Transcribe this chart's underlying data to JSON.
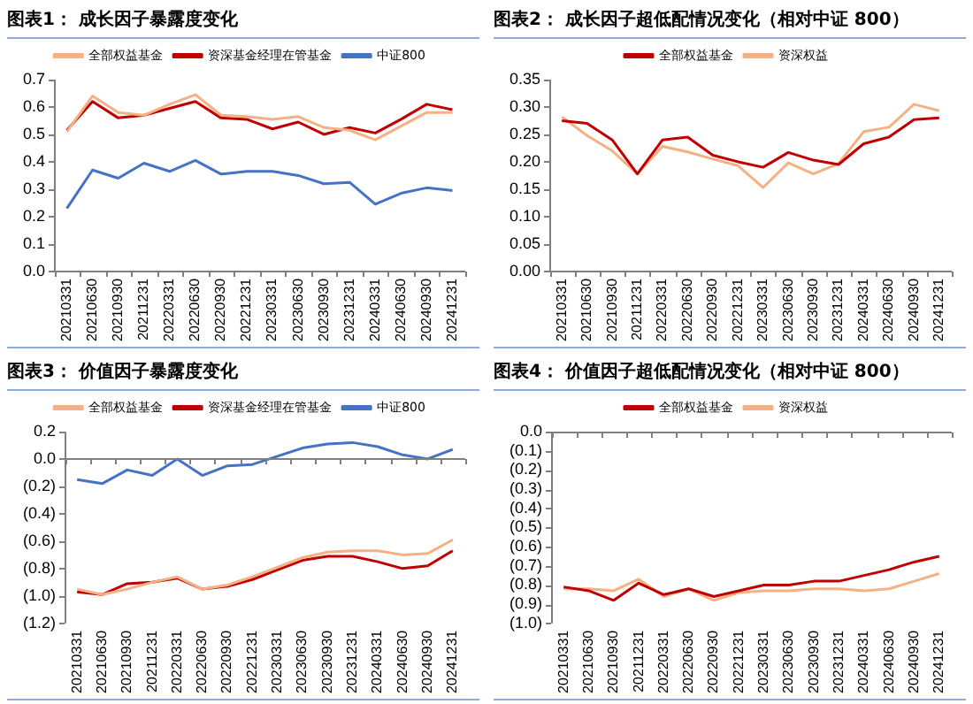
{
  "chart_data": [
    {
      "type": "line",
      "title": "图表1： 成长因子暴露度变化",
      "categories": [
        "20210331",
        "20210630",
        "20210930",
        "20211231",
        "20220331",
        "20220630",
        "20220930",
        "20221231",
        "20230331",
        "20230630",
        "20230930",
        "20231231",
        "20240331",
        "20240630",
        "20240930",
        "20241231"
      ],
      "series": [
        {
          "name": "全部权益基金",
          "color": "#f4b183",
          "values": [
            0.51,
            0.64,
            0.58,
            0.57,
            0.61,
            0.645,
            0.57,
            0.565,
            0.555,
            0.565,
            0.525,
            0.515,
            0.48,
            0.53,
            0.58,
            0.58
          ]
        },
        {
          "name": "资深基金经理在管基金",
          "color": "#c00000",
          "values": [
            0.515,
            0.62,
            0.56,
            0.57,
            0.595,
            0.62,
            0.56,
            0.555,
            0.52,
            0.545,
            0.5,
            0.525,
            0.505,
            0.555,
            0.61,
            0.59
          ]
        },
        {
          "name": "中证800",
          "color": "#4472c4",
          "values": [
            0.23,
            0.37,
            0.34,
            0.395,
            0.365,
            0.405,
            0.355,
            0.365,
            0.365,
            0.35,
            0.32,
            0.325,
            0.245,
            0.285,
            0.305,
            0.295
          ]
        }
      ],
      "ylim": [
        0,
        0.7
      ],
      "yticks": [
        {
          "value": 0,
          "label": "0.0"
        },
        0.1,
        0.2,
        0.3,
        0.4,
        0.5,
        0.6,
        0.7
      ],
      "legend": "top",
      "grid": false,
      "marker": "none",
      "line_style": "solid"
    },
    {
      "type": "line",
      "title": "图表2： 成长因子超低配情况变化（相对中证 800）",
      "categories": [
        "20210331",
        "20210630",
        "20210930",
        "20211231",
        "20220331",
        "20220630",
        "20220930",
        "20221231",
        "20230331",
        "20230630",
        "20230930",
        "20231231",
        "20240331",
        "20240630",
        "20240930",
        "20241231"
      ],
      "series": [
        {
          "name": "全部权益基金",
          "color": "#c00000",
          "values": [
            0.275,
            0.27,
            0.24,
            0.178,
            0.24,
            0.245,
            0.212,
            0.2,
            0.19,
            0.217,
            0.203,
            0.195,
            0.233,
            0.245,
            0.277,
            0.28
          ]
        },
        {
          "name": "资深权益",
          "color": "#f4b183",
          "values": [
            0.282,
            0.248,
            0.22,
            0.178,
            0.228,
            0.218,
            0.205,
            0.193,
            0.153,
            0.198,
            0.178,
            0.197,
            0.255,
            0.263,
            0.305,
            0.293
          ]
        }
      ],
      "ylim": [
        0,
        0.35
      ],
      "yticks": [
        {
          "value": 0,
          "label": "0.00"
        },
        0.05,
        {
          "value": 0.1,
          "label": "0.10"
        },
        0.15,
        {
          "value": 0.2,
          "label": "0.20"
        },
        0.25,
        {
          "value": 0.3,
          "label": "0.30"
        },
        0.35
      ],
      "legend": "top",
      "grid": false,
      "marker": "none",
      "line_style": "solid"
    },
    {
      "type": "line",
      "title": "图表3： 价值因子暴露度变化",
      "categories": [
        "20210331",
        "20210630",
        "20210930",
        "20211231",
        "20220331",
        "20220630",
        "20220930",
        "20221231",
        "20230331",
        "20230630",
        "20230930",
        "20231231",
        "20240331",
        "20240630",
        "20240930",
        "20241231"
      ],
      "series": [
        {
          "name": "全部权益基金",
          "color": "#f4b183",
          "values": [
            -0.95,
            -0.99,
            -0.95,
            -0.9,
            -0.86,
            -0.95,
            -0.92,
            -0.86,
            -0.79,
            -0.72,
            -0.68,
            -0.67,
            -0.67,
            -0.7,
            -0.69,
            -0.59
          ]
        },
        {
          "name": "资深基金经理在管基金",
          "color": "#c00000",
          "values": [
            -0.97,
            -0.99,
            -0.91,
            -0.9,
            -0.87,
            -0.95,
            -0.93,
            -0.88,
            -0.81,
            -0.74,
            -0.71,
            -0.71,
            -0.75,
            -0.8,
            -0.78,
            -0.67
          ]
        },
        {
          "name": "中证800",
          "color": "#4472c4",
          "values": [
            -0.15,
            -0.18,
            -0.08,
            -0.12,
            0,
            -0.12,
            -0.05,
            -0.04,
            0.02,
            0.08,
            0.11,
            0.12,
            0.09,
            0.03,
            0,
            0.07
          ]
        }
      ],
      "ref_lines": [
        {
          "axis": "y",
          "value": 0,
          "color": "#7f7f7f"
        }
      ],
      "ylim": [
        -1.2,
        0.2
      ],
      "yticks": [
        {
          "value": -1.2,
          "label": "(1.2)"
        },
        {
          "value": -1,
          "label": "(1.0)"
        },
        {
          "value": -0.8,
          "label": "(0.8)"
        },
        {
          "value": -0.6,
          "label": "(0.6)"
        },
        {
          "value": -0.4,
          "label": "(0.4)"
        },
        {
          "value": -0.2,
          "label": "(0.2)"
        },
        {
          "value": 0,
          "label": "0.0"
        },
        0.2
      ],
      "legend": "top",
      "grid": false,
      "marker": "none",
      "line_style": "solid"
    },
    {
      "type": "line",
      "title": "图表4： 价值因子超低配情况变化（相对中证 800）",
      "categories": [
        "20210331",
        "20210630",
        "20210930",
        "20211231",
        "20220331",
        "20220630",
        "20220930",
        "20221231",
        "20230331",
        "20230630",
        "20230930",
        "20231231",
        "20240331",
        "20240630",
        "20240930",
        "20241231"
      ],
      "series": [
        {
          "name": "全部权益基金",
          "color": "#c00000",
          "values": [
            -0.81,
            -0.83,
            -0.88,
            -0.79,
            -0.85,
            -0.82,
            -0.86,
            -0.83,
            -0.8,
            -0.8,
            -0.78,
            -0.78,
            -0.75,
            -0.72,
            -0.68,
            -0.65
          ]
        },
        {
          "name": "资深权益",
          "color": "#f4b183",
          "values": [
            -0.82,
            -0.82,
            -0.83,
            -0.77,
            -0.86,
            -0.82,
            -0.88,
            -0.84,
            -0.83,
            -0.83,
            -0.82,
            -0.82,
            -0.83,
            -0.82,
            -0.78,
            -0.74
          ]
        }
      ],
      "ylim": [
        -1,
        0
      ],
      "yticks": [
        {
          "value": -1,
          "label": "(1.0)"
        },
        {
          "value": -0.9,
          "label": "(0.9)"
        },
        {
          "value": -0.8,
          "label": "(0.8)"
        },
        {
          "value": -0.7,
          "label": "(0.7)"
        },
        {
          "value": -0.6,
          "label": "(0.6)"
        },
        {
          "value": -0.5,
          "label": "(0.5)"
        },
        {
          "value": -0.4,
          "label": "(0.4)"
        },
        {
          "value": -0.3,
          "label": "(0.3)"
        },
        {
          "value": -0.2,
          "label": "(0.2)"
        },
        {
          "value": -0.1,
          "label": "(0.1)"
        },
        {
          "value": 0,
          "label": "0.0"
        }
      ],
      "legend": "top",
      "grid": false,
      "marker": "none",
      "line_style": "solid"
    }
  ]
}
